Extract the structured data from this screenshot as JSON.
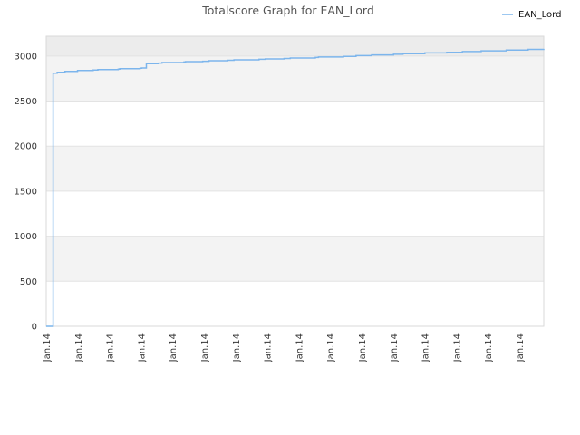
{
  "chart_data": {
    "type": "line",
    "title": "Totalscore Graph for EAN_Lord",
    "xlabel": "",
    "ylabel": "",
    "ylim": [
      0,
      3220
    ],
    "yticks": [
      0,
      500,
      1000,
      1500,
      2000,
      2500,
      3000
    ],
    "xlim": [
      0,
      15.9
    ],
    "x_tick_labels": [
      "Jan.14",
      "Jan.14",
      "Jan.14",
      "Jan.14",
      "Jan.14",
      "Jan.14",
      "Jan.14",
      "Jan.14",
      "Jan.14",
      "Jan.14",
      "Jan.14",
      "Jan.14",
      "Jan.14",
      "Jan.14",
      "Jan.14",
      "Jan.14"
    ],
    "grid": true,
    "legend_position": "top-right",
    "series": [
      {
        "name": "EAN_Lord",
        "color": "#7cb5ec",
        "step": true,
        "points": [
          [
            0.0,
            0
          ],
          [
            0.2,
            0
          ],
          [
            0.22,
            2810
          ],
          [
            0.35,
            2820
          ],
          [
            0.6,
            2830
          ],
          [
            1.0,
            2840
          ],
          [
            1.5,
            2845
          ],
          [
            1.65,
            2850
          ],
          [
            2.3,
            2855
          ],
          [
            2.35,
            2860
          ],
          [
            3.0,
            2865
          ],
          [
            3.05,
            2868
          ],
          [
            3.2,
            2915
          ],
          [
            3.6,
            2922
          ],
          [
            3.7,
            2928
          ],
          [
            4.4,
            2934
          ],
          [
            4.45,
            2938
          ],
          [
            5.0,
            2942
          ],
          [
            5.2,
            2948
          ],
          [
            5.8,
            2953
          ],
          [
            6.0,
            2958
          ],
          [
            6.8,
            2965
          ],
          [
            7.0,
            2968
          ],
          [
            7.6,
            2973
          ],
          [
            7.8,
            2978
          ],
          [
            8.6,
            2985
          ],
          [
            8.7,
            2990
          ],
          [
            9.5,
            2996
          ],
          [
            9.9,
            3005
          ],
          [
            10.4,
            3012
          ],
          [
            11.1,
            3020
          ],
          [
            11.4,
            3026
          ],
          [
            12.1,
            3035
          ],
          [
            12.8,
            3042
          ],
          [
            13.3,
            3050
          ],
          [
            13.9,
            3058
          ],
          [
            14.7,
            3066
          ],
          [
            15.4,
            3074
          ],
          [
            15.9,
            3080
          ]
        ]
      }
    ]
  }
}
